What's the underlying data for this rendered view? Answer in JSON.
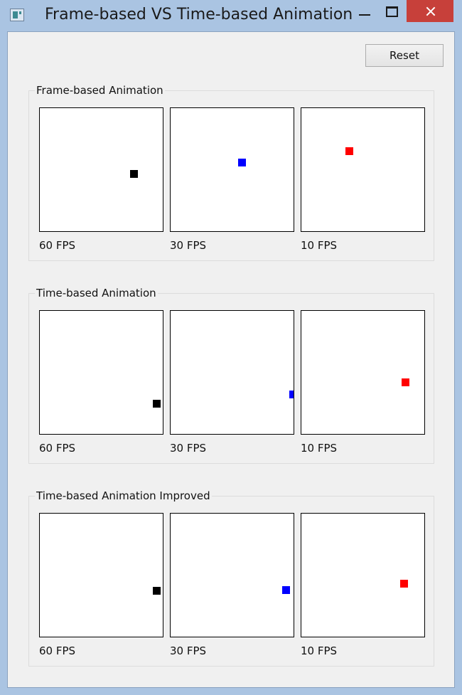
{
  "window": {
    "title": "Frame-based VS Time-based Animation"
  },
  "toolbar": {
    "reset_label": "Reset"
  },
  "colors": {
    "fps60": "#000000",
    "fps30": "#0000ff",
    "fps10": "#ff0000"
  },
  "groups": [
    {
      "title": "Frame-based Animation",
      "panels": [
        {
          "label": "60 FPS",
          "color": "#000000"
        },
        {
          "label": "30 FPS",
          "color": "#0000ff"
        },
        {
          "label": "10 FPS",
          "color": "#ff0000"
        }
      ]
    },
    {
      "title": "Time-based Animation",
      "panels": [
        {
          "label": "60 FPS",
          "color": "#000000"
        },
        {
          "label": "30 FPS",
          "color": "#0000ff"
        },
        {
          "label": "10 FPS",
          "color": "#ff0000"
        }
      ]
    },
    {
      "title": "Time-based Animation Improved",
      "panels": [
        {
          "label": "60 FPS",
          "color": "#000000"
        },
        {
          "label": "30 FPS",
          "color": "#0000ff"
        },
        {
          "label": "10 FPS",
          "color": "#ff0000"
        }
      ]
    }
  ]
}
